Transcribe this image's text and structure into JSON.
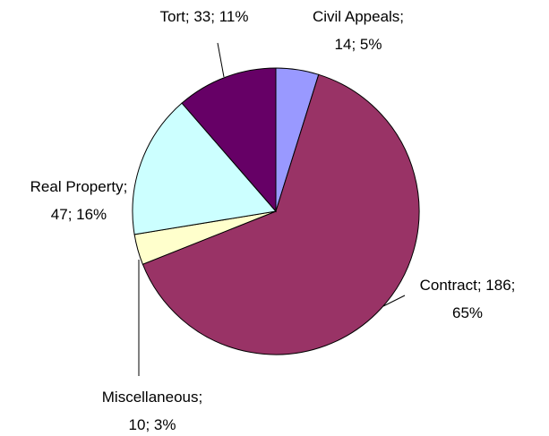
{
  "chart_data": {
    "type": "pie",
    "categories": [
      "Civil Appeals",
      "Contract",
      "Miscellaneous",
      "Real Property",
      "Tort"
    ],
    "values": [
      14,
      186,
      10,
      47,
      33
    ],
    "value_labels": [
      [
        "Civil Appeals;",
        "14; 5%"
      ],
      [
        "Contract; 186;",
        "65%"
      ],
      [
        "Miscellaneous;",
        "10; 3%"
      ],
      [
        "Real Property;",
        "47; 16%"
      ],
      [
        "Tort; 33; 11%"
      ]
    ],
    "colors": [
      "#9999ff",
      "#993366",
      "#ffffcc",
      "#ccffff",
      "#660066"
    ]
  }
}
